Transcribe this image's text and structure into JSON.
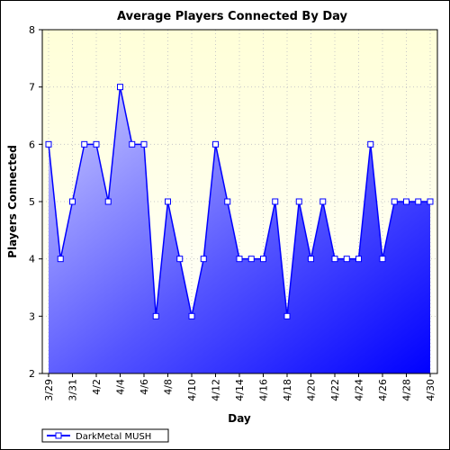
{
  "chart_data": {
    "type": "area",
    "title": "Average Players Connected By Day",
    "xlabel": "Day",
    "ylabel": "Players Connected",
    "ylim": [
      2,
      8
    ],
    "y_ticks": [
      2,
      3,
      4,
      5,
      6,
      7,
      8
    ],
    "x_tick_labels": [
      "3/29",
      "3/31",
      "4/2",
      "4/4",
      "4/6",
      "4/8",
      "4/10",
      "4/12",
      "4/14",
      "4/16",
      "4/18",
      "4/20",
      "4/22",
      "4/24",
      "4/26",
      "4/28",
      "4/30"
    ],
    "categories": [
      "3/29",
      "3/30",
      "3/31",
      "4/1",
      "4/2",
      "4/3",
      "4/4",
      "4/5",
      "4/6",
      "4/7",
      "4/8",
      "4/9",
      "4/10",
      "4/11",
      "4/12",
      "4/13",
      "4/14",
      "4/15",
      "4/16",
      "4/17",
      "4/18",
      "4/19",
      "4/20",
      "4/21",
      "4/22",
      "4/23",
      "4/24",
      "4/25",
      "4/26",
      "4/27",
      "4/28",
      "4/29",
      "4/30"
    ],
    "series": [
      {
        "name": "DarkMetal MUSH",
        "color": "#0000ff",
        "values": [
          6,
          4,
          5,
          6,
          6,
          5,
          7,
          6,
          6,
          3,
          5,
          4,
          3,
          4,
          6,
          5,
          4,
          4,
          4,
          5,
          3,
          5,
          4,
          5,
          4,
          4,
          4,
          6,
          4,
          5,
          5,
          5,
          5
        ]
      }
    ],
    "grid": true,
    "legend_position": "bottom-left",
    "plot_background": "#ffffdd"
  }
}
